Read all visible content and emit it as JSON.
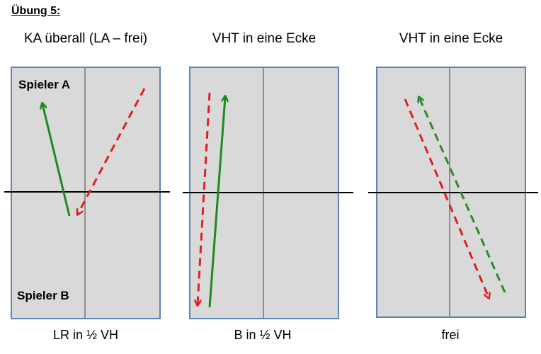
{
  "heading": "Übung 5:",
  "panels": [
    {
      "title": "KA überall (LA – frei)",
      "caption": "LR in ½ VH",
      "labels": {
        "top": "Spieler A",
        "bottom": "Spieler B"
      }
    },
    {
      "title": "VHT in eine Ecke",
      "caption": "B in ½ VH"
    },
    {
      "title": "VHT in eine Ecke",
      "caption": "frei"
    }
  ],
  "colors": {
    "court_fill": "#d9d9d9",
    "court_border": "#5b84b5",
    "center_line": "#8c8c8c",
    "net": "#000000",
    "arrow_solid": "#1e8a1e",
    "arrow_red_dashed": "#e02020",
    "arrow_green_dashed": "#2a8a2a"
  },
  "arrows": [
    {
      "panel": 0,
      "name": "green-solid-arrow",
      "style": "solid",
      "color": "arrow_solid"
    },
    {
      "panel": 0,
      "name": "red-dashed-arrow",
      "style": "dashed",
      "color": "arrow_red_dashed"
    },
    {
      "panel": 1,
      "name": "green-solid-arrow",
      "style": "solid",
      "color": "arrow_solid"
    },
    {
      "panel": 1,
      "name": "red-dashed-arrow",
      "style": "dashed",
      "color": "arrow_red_dashed"
    },
    {
      "panel": 2,
      "name": "green-dashed-arrow",
      "style": "dashed",
      "color": "arrow_green_dashed"
    },
    {
      "panel": 2,
      "name": "red-dashed-arrow",
      "style": "dashed",
      "color": "arrow_red_dashed"
    }
  ]
}
